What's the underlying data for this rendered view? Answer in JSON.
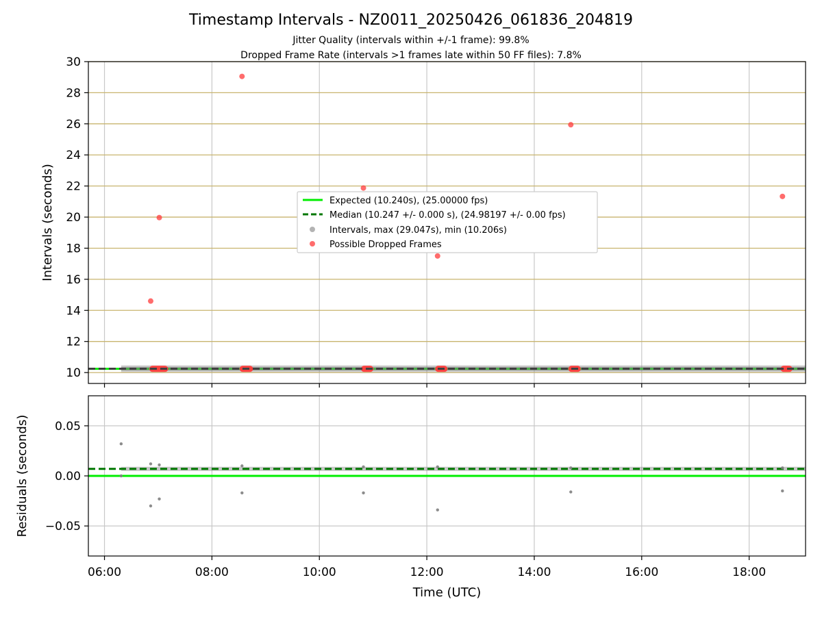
{
  "title": "Timestamp Intervals - NZ0011_20250426_061836_204819",
  "subtitle_1": "Jitter Quality (intervals within +/-1 frame): 99.8%",
  "subtitle_2": "Dropped Frame Rate (intervals >1 frames late within 50 FF files): 7.8%",
  "colors": {
    "expected": "#00ee00",
    "median": "#007700",
    "intervals": "#808080",
    "dropped": "#ff3b3b",
    "grid_vertical": "#c8c8c8",
    "grid_horizontal_top": "#c8b46e",
    "grid_horizontal_bottom": "#c8c8c8",
    "axes": "#000000"
  },
  "legend": {
    "placement": "center",
    "entries": [
      "Expected (10.240s), (25.00000 fps)",
      "Median (10.247 +/- 0.000 s), (24.98197 +/- 0.00 fps)",
      "Intervals, max (29.047s), min (10.206s)",
      "Possible Dropped Frames"
    ]
  },
  "chart_data": [
    {
      "type": "scatter",
      "panel": "intervals",
      "xlabel": "",
      "ylabel": "Intervals (seconds)",
      "xlim_hours": [
        5.7,
        19.05
      ],
      "ylim": [
        9.3,
        30
      ],
      "yticks": [
        10,
        12,
        14,
        16,
        18,
        20,
        22,
        24,
        26,
        28,
        30
      ],
      "ytick_labels": [
        "10",
        "12",
        "14",
        "16",
        "18",
        "20",
        "22",
        "24",
        "26",
        "28",
        "30"
      ],
      "grid": true,
      "expected_value": 10.24,
      "median_value": 10.247,
      "interval_band": {
        "start_hour": 6.31,
        "end_hour": 20.81,
        "center": 10.247,
        "half_height": 0.18
      },
      "dropped_clusters": [
        {
          "start_hour": 6.86,
          "end_hour": 7.16,
          "value": 10.24
        },
        {
          "start_hour": 8.54,
          "end_hour": 8.74,
          "value": 10.24
        },
        {
          "start_hour": 10.8,
          "end_hour": 10.98,
          "value": 10.24
        },
        {
          "start_hour": 12.18,
          "end_hour": 12.36,
          "value": 10.24
        },
        {
          "start_hour": 14.66,
          "end_hour": 14.84,
          "value": 10.24
        },
        {
          "start_hour": 18.61,
          "end_hour": 18.78,
          "value": 10.24
        }
      ],
      "dropped_points": [
        {
          "x_hour": 6.86,
          "y": 14.6
        },
        {
          "x_hour": 7.02,
          "y": 19.97
        },
        {
          "x_hour": 8.56,
          "y": 29.05
        },
        {
          "x_hour": 10.82,
          "y": 21.87
        },
        {
          "x_hour": 12.2,
          "y": 17.5
        },
        {
          "x_hour": 14.68,
          "y": 25.94
        },
        {
          "x_hour": 18.62,
          "y": 21.33
        }
      ]
    },
    {
      "type": "scatter",
      "panel": "residuals",
      "xlabel": "Time (UTC)",
      "ylabel": "Residuals (seconds)",
      "xlim_hours": [
        5.7,
        19.05
      ],
      "ylim": [
        -0.08,
        0.08
      ],
      "yticks": [
        -0.05,
        0.0,
        0.05
      ],
      "ytick_labels": [
        "−0.05",
        "0.00",
        "0.05"
      ],
      "xticks_hours": [
        6,
        8,
        10,
        12,
        14,
        16,
        18
      ],
      "xtick_labels": [
        "06:00",
        "08:00",
        "10:00",
        "12:00",
        "14:00",
        "16:00",
        "18:00"
      ],
      "grid": true,
      "expected_residual": 0.0,
      "median_residual": 0.007,
      "residual_band": {
        "start_hour": 6.31,
        "end_hour": 20.81,
        "center": 0.007
      },
      "points": [
        {
          "x_hour": 6.31,
          "y": 0.032
        },
        {
          "x_hour": 6.31,
          "y": 0.0
        },
        {
          "x_hour": 6.86,
          "y": 0.012
        },
        {
          "x_hour": 6.86,
          "y": -0.03
        },
        {
          "x_hour": 7.02,
          "y": 0.011
        },
        {
          "x_hour": 7.02,
          "y": -0.023
        },
        {
          "x_hour": 8.56,
          "y": 0.01
        },
        {
          "x_hour": 8.56,
          "y": -0.017
        },
        {
          "x_hour": 10.82,
          "y": 0.009
        },
        {
          "x_hour": 10.82,
          "y": -0.017
        },
        {
          "x_hour": 12.2,
          "y": 0.009
        },
        {
          "x_hour": 12.2,
          "y": -0.034
        },
        {
          "x_hour": 14.68,
          "y": 0.008
        },
        {
          "x_hour": 14.68,
          "y": -0.016
        },
        {
          "x_hour": 18.62,
          "y": 0.008
        },
        {
          "x_hour": 18.62,
          "y": -0.015
        }
      ]
    }
  ]
}
